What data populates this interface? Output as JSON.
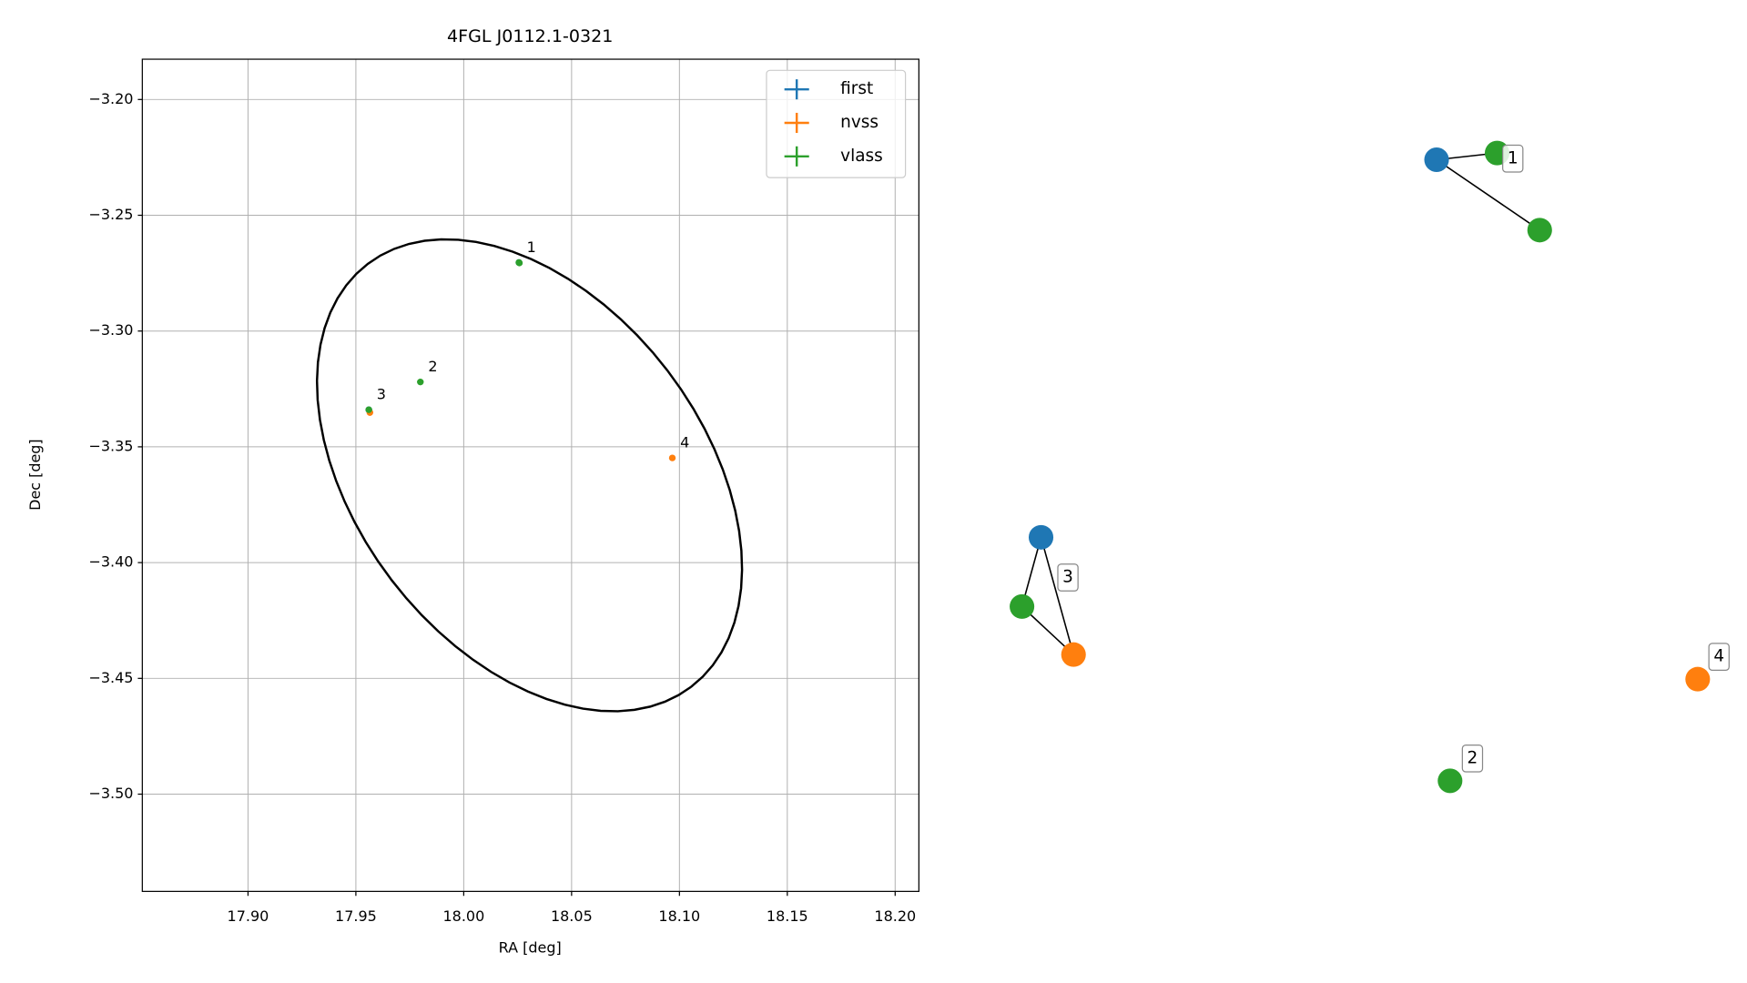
{
  "chart_data": {
    "type": "scatter",
    "title": "4FGL J0112.1-0321",
    "x_label": "RA [deg]",
    "y_label": "Dec [deg]",
    "xlim": [
      17.851,
      18.211
    ],
    "ylim": [
      -3.542,
      -3.1826
    ],
    "xticks": [
      {
        "value": 17.9,
        "label": "17.90"
      },
      {
        "value": 17.95,
        "label": "17.95"
      },
      {
        "value": 18.0,
        "label": "18.00"
      },
      {
        "value": 18.05,
        "label": "18.05"
      },
      {
        "value": 18.1,
        "label": "18.10"
      },
      {
        "value": 18.15,
        "label": "18.15"
      },
      {
        "value": 18.2,
        "label": "18.20"
      }
    ],
    "yticks": [
      {
        "value": -3.2,
        "label": "−3.20"
      },
      {
        "value": -3.25,
        "label": "−3.25"
      },
      {
        "value": -3.3,
        "label": "−3.30"
      },
      {
        "value": -3.35,
        "label": "−3.35"
      },
      {
        "value": -3.4,
        "label": "−3.40"
      },
      {
        "value": -3.45,
        "label": "−3.45"
      },
      {
        "value": -3.5,
        "label": "−3.50"
      }
    ],
    "grid": true,
    "legend": "upper right",
    "series": [
      {
        "name": "first",
        "color": "#1f77b4",
        "x": [
          18.0256,
          17.956
        ],
        "values": [
          -3.2704,
          -3.334
        ]
      },
      {
        "name": "nvss",
        "color": "#ff7f0e",
        "x": [
          17.9565,
          18.0967
        ],
        "values": [
          -3.3352,
          -3.3548
        ]
      },
      {
        "name": "vlass",
        "color": "#2ca02c",
        "x": [
          18.0256,
          18.0258,
          17.9799,
          17.956
        ],
        "values": [
          -3.2704,
          -3.2706,
          -3.322,
          -3.334
        ]
      }
    ],
    "ellipse": {
      "center": [
        18.0305,
        -3.3623
      ],
      "axis1": [
        0.075,
        -0.0913
      ],
      "axis2": [
        0.0639,
        0.0453
      ]
    },
    "annotations": [
      {
        "label": "1",
        "x": 18.0256,
        "y": -3.2704
      },
      {
        "label": "2",
        "x": 17.9799,
        "y": -3.322
      },
      {
        "label": "3",
        "x": 17.956,
        "y": -3.334
      },
      {
        "label": "4",
        "x": 18.0967,
        "y": -3.3548
      }
    ],
    "network": {
      "nodes": [
        {
          "catalog": 0
        },
        {
          "catalog": 2
        },
        {
          "catalog": 2
        },
        {
          "catalog": 0
        },
        {
          "catalog": 2
        },
        {
          "catalog": 1
        },
        {
          "catalog": 2
        },
        {
          "catalog": 1
        }
      ],
      "edges": [
        [
          0,
          1
        ],
        [
          0,
          2
        ],
        [
          3,
          4
        ],
        [
          3,
          5
        ],
        [
          4,
          5
        ]
      ]
    }
  }
}
